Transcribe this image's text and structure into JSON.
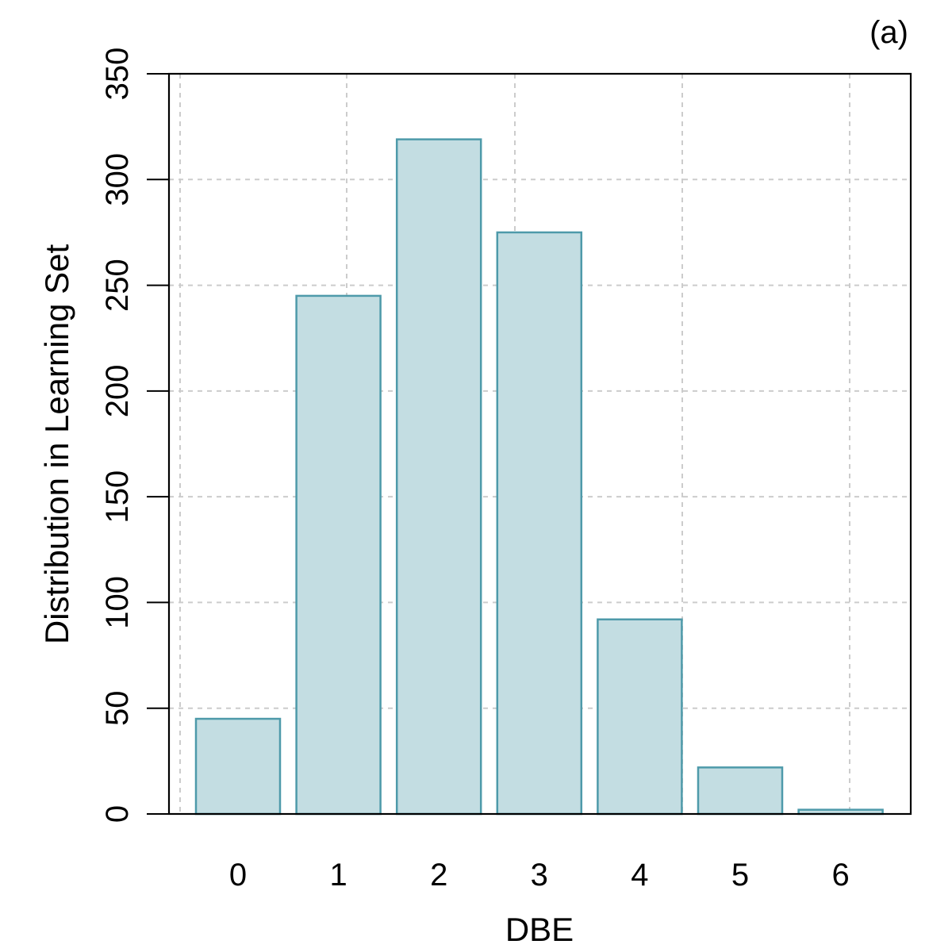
{
  "panel_label": "(a)",
  "chart_data": {
    "type": "bar",
    "title": "",
    "xlabel": "DBE",
    "ylabel": "Distribution in Learning Set",
    "categories": [
      "0",
      "1",
      "2",
      "3",
      "4",
      "5",
      "6"
    ],
    "values": [
      45,
      245,
      319,
      275,
      92,
      22,
      2
    ],
    "ylim": [
      0,
      350
    ],
    "yticks": [
      "0",
      "50",
      "100",
      "150",
      "200",
      "250",
      "300",
      "350"
    ],
    "grid": true,
    "legend": "none",
    "colors": {
      "bar_fill": "#c3dde2",
      "bar_stroke": "#4e9aaa",
      "grid": "#cccccc",
      "axis": "#000000"
    }
  }
}
